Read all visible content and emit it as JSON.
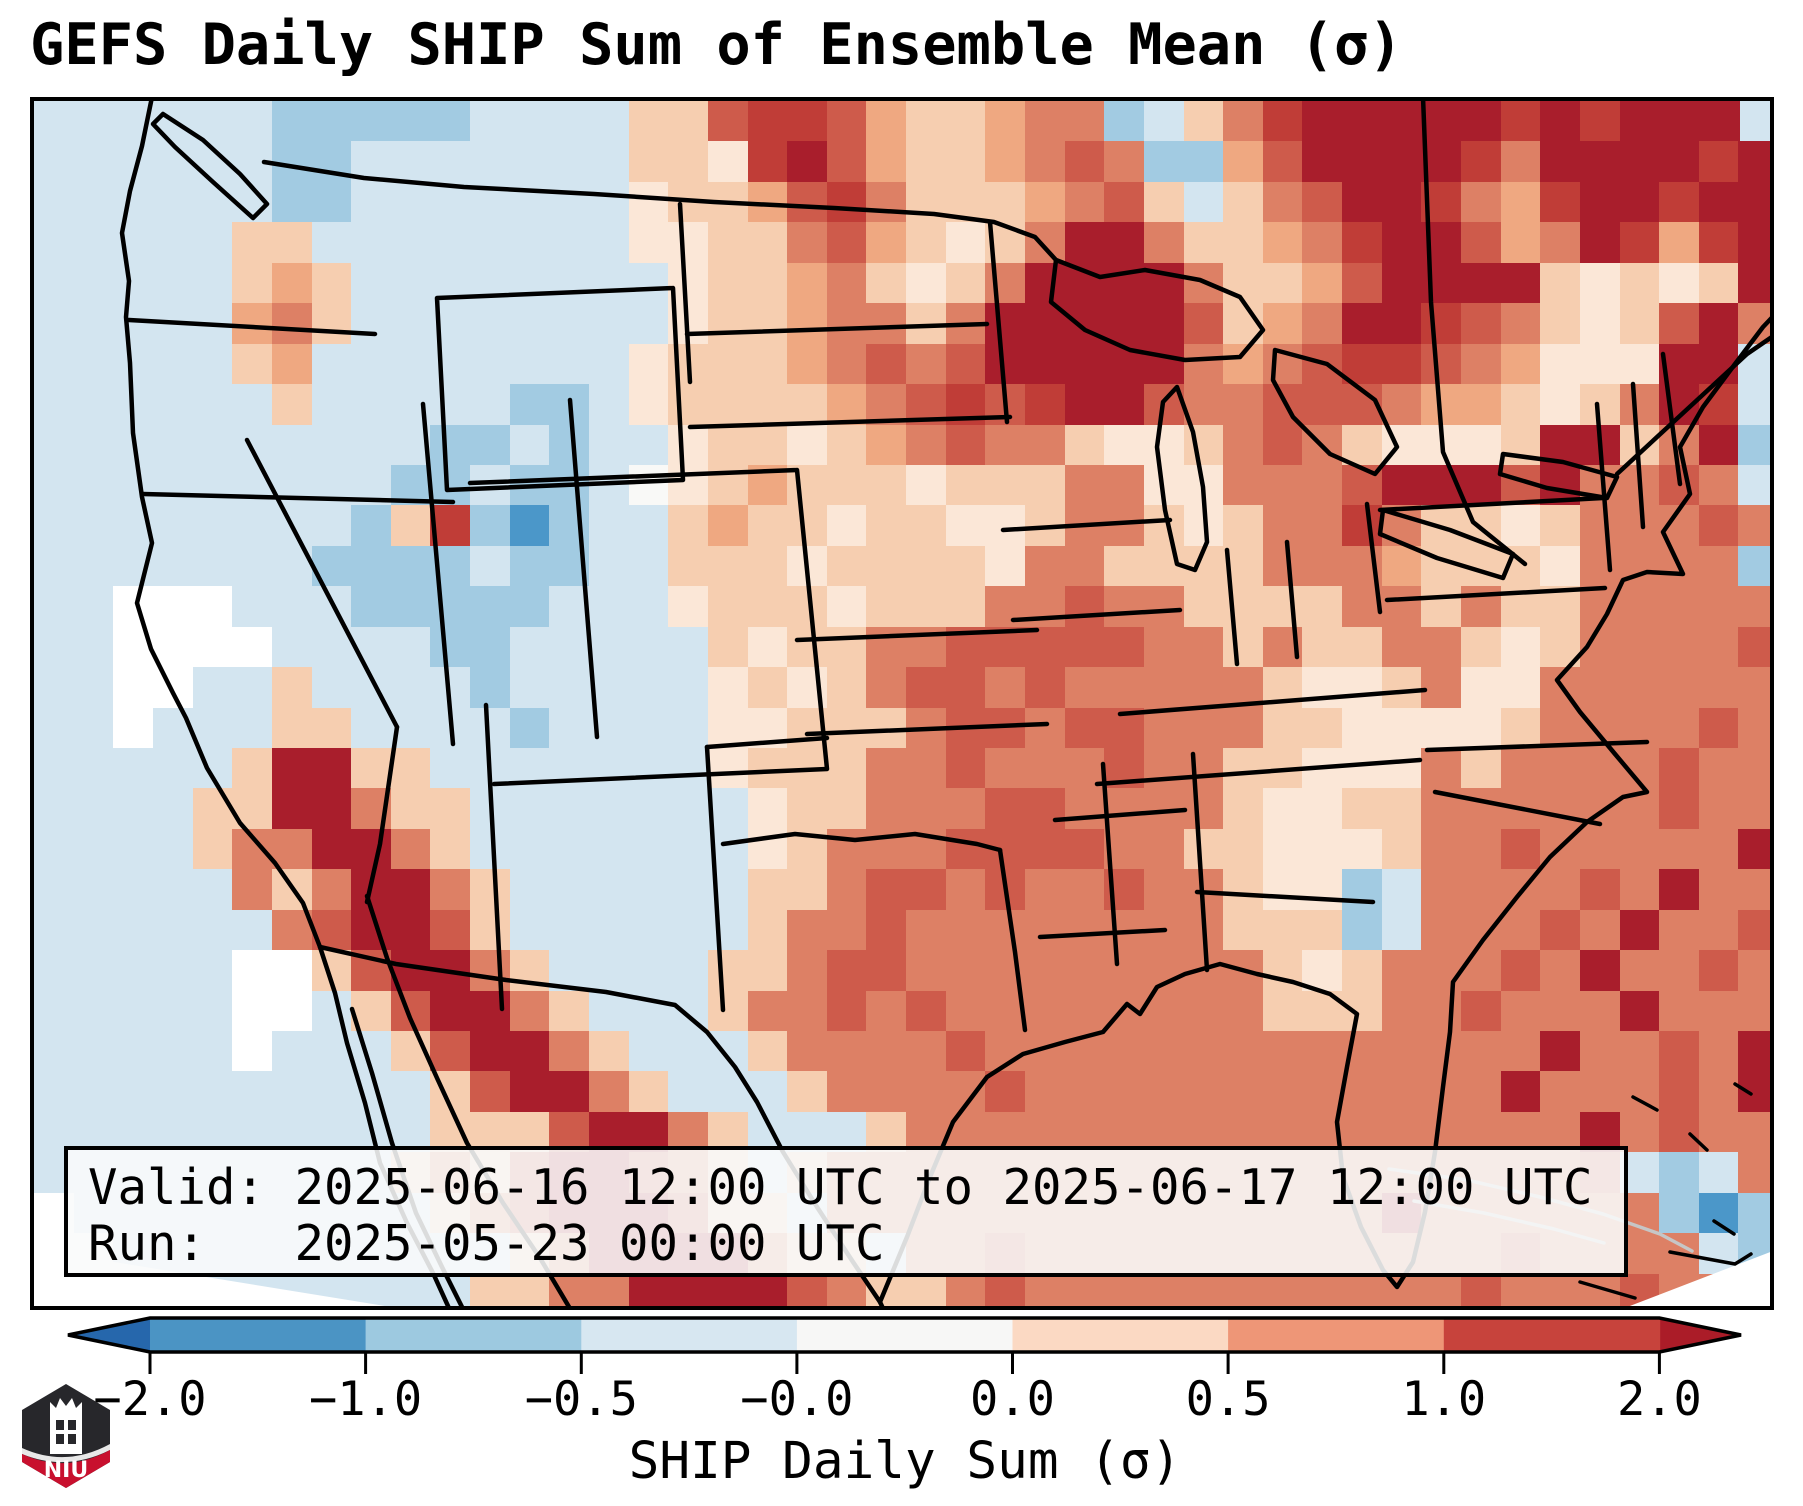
{
  "title": "GEFS Daily SHIP Sum of Ensemble Mean (σ)",
  "info_box": {
    "valid_line": "Valid: 2025-06-16 12:00 UTC to 2025-06-17 12:00 UTC",
    "run_line": "Run:   2025-05-23 00:00 UTC"
  },
  "colorbar": {
    "label": "SHIP Daily Sum (σ)",
    "tick_labels": [
      "−2.0",
      "−1.0",
      "−0.5",
      "−0.0",
      "0.0",
      "0.5",
      "1.0",
      "2.0"
    ],
    "segment_colors": [
      "#4b94c4",
      "#9dc9e0",
      "#d7e7f1",
      "#f7f7f6",
      "#fbd9c3",
      "#ee9677",
      "#c7433c"
    ],
    "arrow_left_color": "#2667ac",
    "arrow_right_color": "#ab1c28",
    "outline_color": "#000000"
  },
  "logo": {
    "text": "NIU",
    "shield_color": "#27272b",
    "banner_color": "#c8102e"
  },
  "map": {
    "frame_color": "#000000",
    "ocean_base": "#d3e5f0",
    "grid_cols": 44,
    "grid_rows": 30,
    "palette": {
      "0": "#ffffff",
      "1": "#4b97c9",
      "2": "#a2cbe2",
      "3": "#d3e5f0",
      "4": "#f9f9f7",
      "5": "#fbe7d7",
      "6": "#f6ceb0",
      "7": "#efa881",
      "8": "#dd8065",
      "9": "#ce5b4b",
      "a": "#c03d37",
      "b": "#a91e2c"
    },
    "cells": [
      "33333322222333366 9aa976678823 68abbbbbababbb",
      "3333332233333336 65ab9766789822 79bbbba8bbbbab",
      "33333322333333356679a866678963689bba87abbabb",
      "33333663333333355668976568bb86678abb978ba7ab",
      "33333676333333335667865 68bbbb86679bbbb65656ba",
      "3333378633333333566788 68bbbbb9678bba986569b8",
      "333336733333333566678989bbbbb8789aa987555bb3",
      "33333363333322356666789a9abb9889998776568ba3",
      "33333333332232335665678988655689865556bb68b2",
      "33333333322322345676665666885588 89bbb9b88983",
      "3333333326a2123367665665568865688a8665688898",
      "33333332222322336665666658866668887666588882",
      "33000333222223335666566688988666688686688888",
      "33000033332233333656688999998868668865688889",
      "33003363333233333565689989888886556855888888",
      "33033366333323333556668998998886655556888898",
      "333336bb663333333566688988898866555868888988",
      "333366bb866333333356688899888865566888888988b",
      "3333688bb86333333356888999988665556889888 88b8",
      "33333868bb863333336689989889886552388889 8b88",
      "33333389bb96333333688988888888666238889 8b889",
      "333330069bb8633336689988888888865688898b8898",
      "33333003 69bb863336889898888888866688988 8b888",
      "33333033369bb8633368888988888888888888b8898b",
      "333333333369bb86333688889888888888888b88898b8",
      "333333333 3666 9bb86333688888888888888888b898888",
      "33333333368 69bb98636888888888888888888893 2388",
      "0333333333689bbb966388888888888888b888888 21289",
      "00333333333368bbbb86638898888888888889888832890",
      "000333333336688bbbb986689888888888889888988889 00"
    ],
    "cells_note": "rows of palette indices, west-to-east, north-to-south"
  }
}
